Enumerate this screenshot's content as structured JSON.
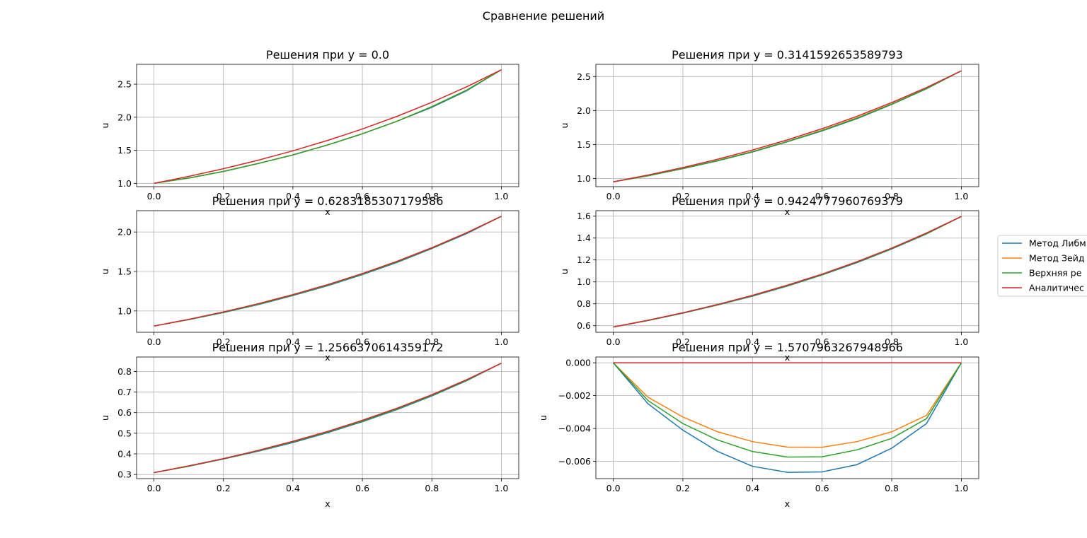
{
  "figure": {
    "suptitle": "Сравнение решений"
  },
  "legend": {
    "entries": [
      {
        "label": "Метод Либм",
        "color": "#1f77b4"
      },
      {
        "label": "Метод Зейд",
        "color": "#ff7f0e"
      },
      {
        "label": "Верхняя ре",
        "color": "#2ca02c"
      },
      {
        "label": "Аналитичес",
        "color": "#d62728"
      }
    ]
  },
  "chart_data": [
    {
      "type": "line",
      "title": "Решения при y = 0.0",
      "xlabel": "x",
      "ylabel": "u",
      "xlim": [
        -0.05,
        1.05
      ],
      "ylim": [
        0.95,
        2.8
      ],
      "grid": true,
      "x": [
        0.0,
        0.1,
        0.2,
        0.3,
        0.4,
        0.5,
        0.6,
        0.7,
        0.8,
        0.9,
        1.0
      ],
      "xticks": [
        0.0,
        0.2,
        0.4,
        0.6,
        0.8,
        1.0
      ],
      "xtick_labels": [
        "0.0",
        "0.2",
        "0.4",
        "0.6",
        "0.8",
        "1.0"
      ],
      "yticks": [
        1.0,
        1.5,
        2.0,
        2.5
      ],
      "ytick_labels": [
        "1.0",
        "1.5",
        "2.0",
        "2.5"
      ],
      "series": [
        {
          "color": "#1f77b4",
          "values": [
            1.0,
            1.08,
            1.18,
            1.3,
            1.43,
            1.58,
            1.75,
            1.94,
            2.15,
            2.4,
            2.718
          ]
        },
        {
          "color": "#ff7f0e",
          "values": [
            1.0,
            1.08,
            1.18,
            1.3,
            1.43,
            1.58,
            1.75,
            1.94,
            2.16,
            2.41,
            2.718
          ]
        },
        {
          "color": "#2ca02c",
          "values": [
            1.0,
            1.08,
            1.18,
            1.3,
            1.43,
            1.58,
            1.75,
            1.94,
            2.16,
            2.41,
            2.718
          ]
        },
        {
          "color": "#d62728",
          "values": [
            1.0,
            1.105,
            1.221,
            1.35,
            1.492,
            1.649,
            1.822,
            2.014,
            2.226,
            2.46,
            2.718
          ]
        }
      ]
    },
    {
      "type": "line",
      "title": "Решения при y = 0.3141592653589793",
      "xlabel": "x",
      "ylabel": "u",
      "xlim": [
        -0.05,
        1.05
      ],
      "ylim": [
        0.88,
        2.68
      ],
      "grid": true,
      "x": [
        0.0,
        0.1,
        0.2,
        0.3,
        0.4,
        0.5,
        0.6,
        0.7,
        0.8,
        0.9,
        1.0
      ],
      "xticks": [
        0.0,
        0.2,
        0.4,
        0.6,
        0.8,
        1.0
      ],
      "xtick_labels": [
        "0.0",
        "0.2",
        "0.4",
        "0.6",
        "0.8",
        "1.0"
      ],
      "yticks": [
        1.0,
        1.5,
        2.0,
        2.5
      ],
      "ytick_labels": [
        "1.0",
        "1.5",
        "2.0",
        "2.5"
      ],
      "series": [
        {
          "color": "#1f77b4",
          "values": [
            0.951,
            1.04,
            1.145,
            1.26,
            1.39,
            1.54,
            1.7,
            1.88,
            2.09,
            2.32,
            2.585
          ]
        },
        {
          "color": "#ff7f0e",
          "values": [
            0.951,
            1.04,
            1.147,
            1.265,
            1.397,
            1.546,
            1.71,
            1.893,
            2.098,
            2.325,
            2.585
          ]
        },
        {
          "color": "#2ca02c",
          "values": [
            0.951,
            1.04,
            1.146,
            1.262,
            1.393,
            1.543,
            1.705,
            1.886,
            2.093,
            2.322,
            2.585
          ]
        },
        {
          "color": "#d62728",
          "values": [
            0.951,
            1.051,
            1.161,
            1.284,
            1.419,
            1.568,
            1.733,
            1.915,
            2.117,
            2.339,
            2.585
          ]
        }
      ]
    },
    {
      "type": "line",
      "title": "Решения при y = 0.6283185307179586",
      "xlabel": "x",
      "ylabel": "u",
      "xlim": [
        -0.05,
        1.05
      ],
      "ylim": [
        0.73,
        2.27
      ],
      "grid": true,
      "x": [
        0.0,
        0.1,
        0.2,
        0.3,
        0.4,
        0.5,
        0.6,
        0.7,
        0.8,
        0.9,
        1.0
      ],
      "xticks": [
        0.0,
        0.2,
        0.4,
        0.6,
        0.8,
        1.0
      ],
      "xtick_labels": [
        "0.0",
        "0.2",
        "0.4",
        "0.6",
        "0.8",
        "1.0"
      ],
      "yticks": [
        1.0,
        1.5,
        2.0
      ],
      "ytick_labels": [
        "1.0",
        "1.5",
        "2.0"
      ],
      "series": [
        {
          "color": "#1f77b4",
          "values": [
            0.809,
            0.89,
            0.98,
            1.08,
            1.195,
            1.32,
            1.46,
            1.615,
            1.79,
            1.98,
            2.199
          ]
        },
        {
          "color": "#ff7f0e",
          "values": [
            0.809,
            0.892,
            0.985,
            1.088,
            1.203,
            1.331,
            1.472,
            1.628,
            1.8,
            1.99,
            2.199
          ]
        },
        {
          "color": "#2ca02c",
          "values": [
            0.809,
            0.891,
            0.983,
            1.085,
            1.2,
            1.327,
            1.467,
            1.623,
            1.796,
            1.987,
            2.199
          ]
        },
        {
          "color": "#d62728",
          "values": [
            0.809,
            0.894,
            0.988,
            1.092,
            1.207,
            1.334,
            1.474,
            1.629,
            1.801,
            1.99,
            2.199
          ]
        }
      ]
    },
    {
      "type": "line",
      "title": "Решения при y = 0.9424777960769379",
      "xlabel": "x",
      "ylabel": "u",
      "xlim": [
        -0.05,
        1.05
      ],
      "ylim": [
        0.54,
        1.65
      ],
      "grid": true,
      "x": [
        0.0,
        0.1,
        0.2,
        0.3,
        0.4,
        0.5,
        0.6,
        0.7,
        0.8,
        0.9,
        1.0
      ],
      "xticks": [
        0.0,
        0.2,
        0.4,
        0.6,
        0.8,
        1.0
      ],
      "xtick_labels": [
        "0.0",
        "0.2",
        "0.4",
        "0.6",
        "0.8",
        "1.0"
      ],
      "yticks": [
        0.6,
        0.8,
        1.0,
        1.2,
        1.4,
        1.6
      ],
      "ytick_labels": [
        "0.6",
        "0.8",
        "1.0",
        "1.2",
        "1.4",
        "1.6"
      ],
      "series": [
        {
          "color": "#1f77b4",
          "values": [
            0.588,
            0.647,
            0.714,
            0.789,
            0.87,
            0.962,
            1.063,
            1.175,
            1.3,
            1.438,
            1.597
          ]
        },
        {
          "color": "#ff7f0e",
          "values": [
            0.588,
            0.649,
            0.717,
            0.792,
            0.875,
            0.967,
            1.068,
            1.181,
            1.305,
            1.442,
            1.597
          ]
        },
        {
          "color": "#2ca02c",
          "values": [
            0.588,
            0.648,
            0.716,
            0.79,
            0.873,
            0.965,
            1.066,
            1.179,
            1.303,
            1.44,
            1.597
          ]
        },
        {
          "color": "#d62728",
          "values": [
            0.588,
            0.65,
            0.718,
            0.794,
            0.877,
            0.97,
            1.071,
            1.184,
            1.308,
            1.446,
            1.597
          ]
        }
      ]
    },
    {
      "type": "line",
      "title": "Решения при y = 1.2566370614359172",
      "xlabel": "x",
      "ylabel": "u",
      "xlim": [
        -0.05,
        1.05
      ],
      "ylim": [
        0.28,
        0.87
      ],
      "grid": true,
      "x": [
        0.0,
        0.1,
        0.2,
        0.3,
        0.4,
        0.5,
        0.6,
        0.7,
        0.8,
        0.9,
        1.0
      ],
      "xticks": [
        0.0,
        0.2,
        0.4,
        0.6,
        0.8,
        1.0
      ],
      "xtick_labels": [
        "0.0",
        "0.2",
        "0.4",
        "0.6",
        "0.8",
        "1.0"
      ],
      "yticks": [
        0.3,
        0.4,
        0.5,
        0.6,
        0.7,
        0.8
      ],
      "ytick_labels": [
        "0.3",
        "0.4",
        "0.5",
        "0.6",
        "0.7",
        "0.8"
      ],
      "series": [
        {
          "color": "#1f77b4",
          "values": [
            0.309,
            0.34,
            0.375,
            0.413,
            0.455,
            0.503,
            0.556,
            0.615,
            0.681,
            0.755,
            0.84
          ]
        },
        {
          "color": "#ff7f0e",
          "values": [
            0.309,
            0.341,
            0.377,
            0.416,
            0.46,
            0.508,
            0.561,
            0.62,
            0.686,
            0.758,
            0.84
          ]
        },
        {
          "color": "#2ca02c",
          "values": [
            0.309,
            0.34,
            0.376,
            0.415,
            0.458,
            0.506,
            0.559,
            0.618,
            0.684,
            0.757,
            0.84
          ]
        },
        {
          "color": "#d62728",
          "values": [
            0.309,
            0.342,
            0.377,
            0.417,
            0.461,
            0.509,
            0.563,
            0.622,
            0.687,
            0.76,
            0.84
          ]
        }
      ]
    },
    {
      "type": "line",
      "title": "Решения при y = 1.5707963267948966",
      "xlabel": "x",
      "ylabel": "u",
      "xlim": [
        -0.05,
        1.05
      ],
      "ylim": [
        -0.00705,
        0.00035
      ],
      "grid": true,
      "x": [
        0.0,
        0.1,
        0.2,
        0.3,
        0.4,
        0.5,
        0.6,
        0.7,
        0.8,
        0.9,
        1.0
      ],
      "xticks": [
        0.0,
        0.2,
        0.4,
        0.6,
        0.8,
        1.0
      ],
      "xtick_labels": [
        "0.0",
        "0.2",
        "0.4",
        "0.6",
        "0.8",
        "1.0"
      ],
      "yticks": [
        0.0,
        -0.002,
        -0.004,
        -0.006
      ],
      "ytick_labels": [
        "0.000",
        "−0.002",
        "−0.004",
        "−0.006"
      ],
      "series": [
        {
          "color": "#1f77b4",
          "values": [
            0.0,
            -0.0025,
            -0.0041,
            -0.0054,
            -0.0063,
            -0.00667,
            -0.00664,
            -0.0062,
            -0.0052,
            -0.0037,
            0.0
          ]
        },
        {
          "color": "#ff7f0e",
          "values": [
            0.0,
            -0.0021,
            -0.0033,
            -0.0042,
            -0.0048,
            -0.00513,
            -0.00514,
            -0.0048,
            -0.0042,
            -0.0032,
            0.0
          ]
        },
        {
          "color": "#2ca02c",
          "values": [
            0.0,
            -0.0023,
            -0.0037,
            -0.0047,
            -0.0054,
            -0.00574,
            -0.00572,
            -0.0053,
            -0.0046,
            -0.0034,
            0.0
          ]
        },
        {
          "color": "#d62728",
          "values": [
            0.0,
            0.0,
            0.0,
            0.0,
            0.0,
            0.0,
            0.0,
            0.0,
            0.0,
            0.0,
            0.0
          ]
        }
      ]
    }
  ]
}
